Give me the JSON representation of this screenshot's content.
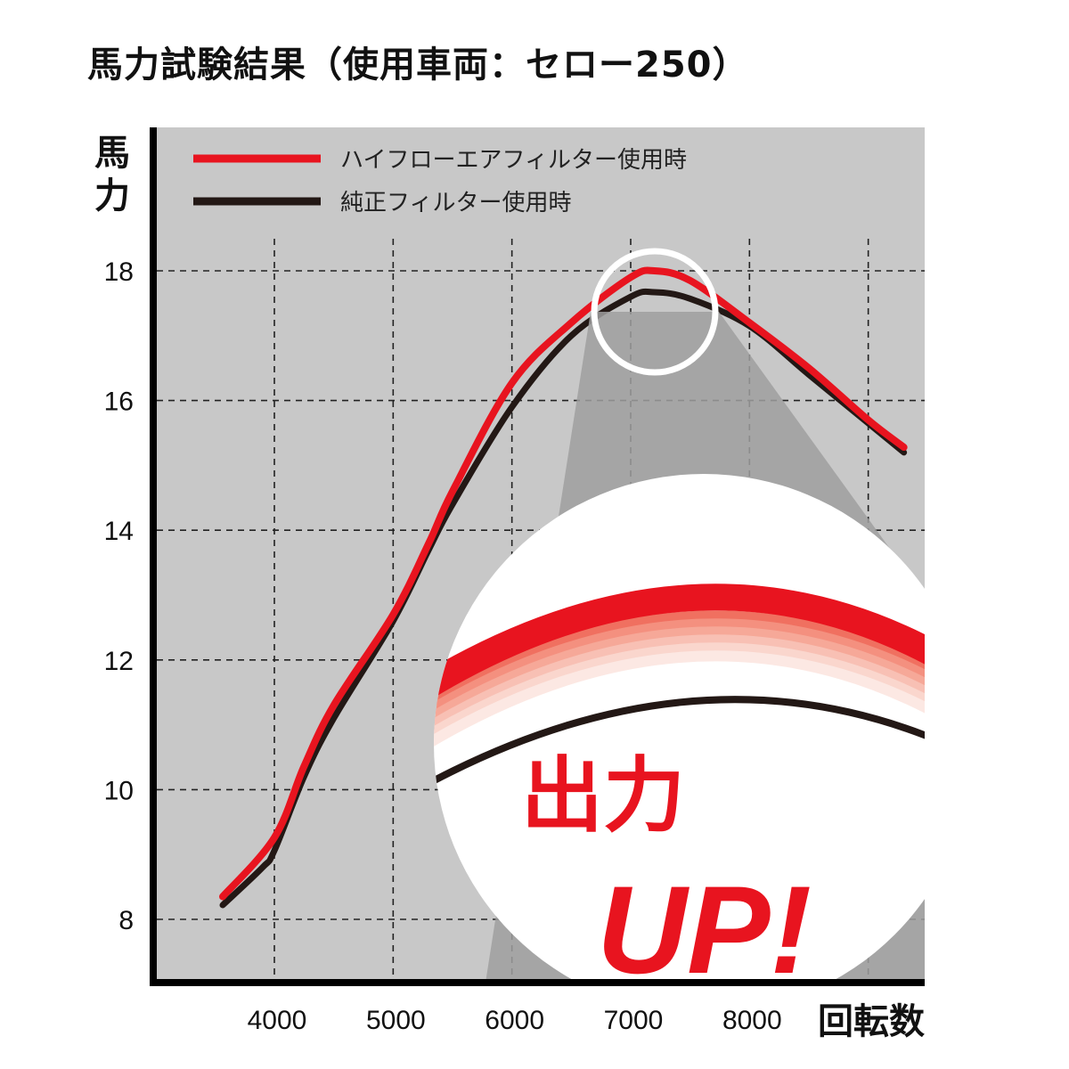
{
  "title": "馬力試験結果（使用車両：セロー250）",
  "chart_data": {
    "type": "line",
    "title": "馬力試験結果（使用車両：セロー250）",
    "xlabel": "回転数",
    "ylabel": "馬力",
    "xlim": [
      3100,
      9500
    ],
    "ylim": [
      6.9,
      20.1
    ],
    "x_ticks": [
      4000,
      5000,
      6000,
      7000,
      8000
    ],
    "x_gridlines": [
      4000,
      5000,
      6000,
      7000,
      8000,
      9000
    ],
    "y_ticks": [
      8,
      10,
      12,
      14,
      16,
      18
    ],
    "grid": true,
    "grid_style": "dashed",
    "legend_position": "top-left",
    "series": [
      {
        "name": "ハイフローエアフィルター使用時",
        "color": "#e8141f",
        "x": [
          3565,
          4000,
          4250,
          4500,
          5000,
          5300,
          5500,
          6000,
          6500,
          7000,
          7200,
          7500,
          8000,
          8500,
          9000,
          9300
        ],
        "y": [
          8.35,
          9.26,
          10.36,
          11.3,
          12.7,
          13.8,
          14.6,
          16.27,
          17.2,
          17.9,
          18.0,
          17.85,
          17.2,
          16.5,
          15.7,
          15.28
        ]
      },
      {
        "name": "純正フィルター使用時",
        "color": "#231815",
        "x": [
          3565,
          3900,
          4000,
          4250,
          4500,
          5000,
          5300,
          5500,
          6000,
          6500,
          7000,
          7200,
          7500,
          8000,
          8500,
          9000,
          9300
        ],
        "y": [
          8.22,
          8.8,
          9.06,
          10.2,
          11.1,
          12.6,
          13.7,
          14.4,
          15.9,
          17.0,
          17.6,
          17.67,
          17.57,
          17.15,
          16.4,
          15.65,
          15.2
        ]
      }
    ],
    "annotation": {
      "text_line1": "出力",
      "text_line2": "UP!",
      "color": "#e8141f"
    }
  },
  "colors": {
    "plot_bg": "#c8c8c8",
    "cone": "#9f9f9f",
    "accent": "#e8141f",
    "dark": "#231815"
  }
}
